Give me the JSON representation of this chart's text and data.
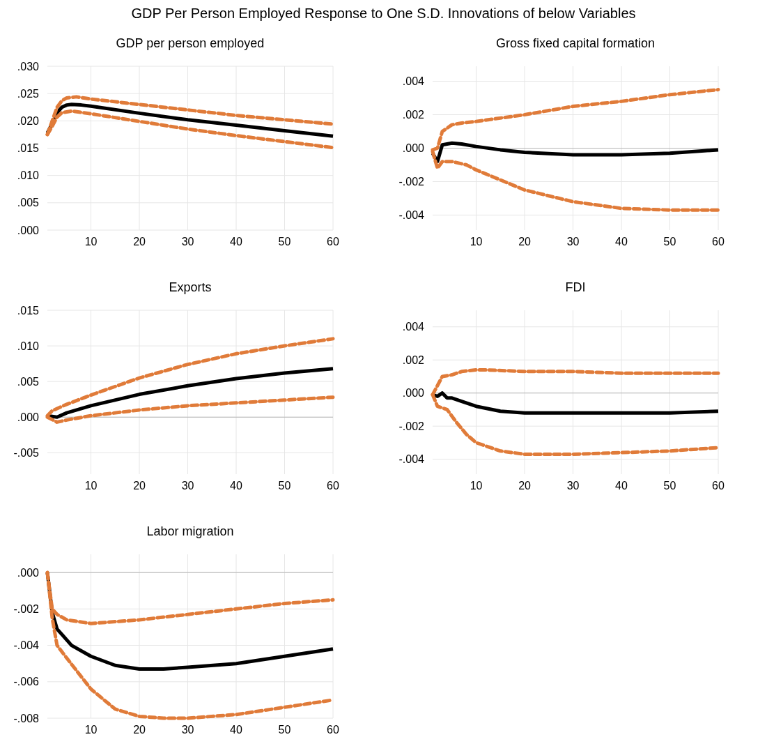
{
  "chart_data": [
    {
      "type": "line",
      "title": "GDP per person employed",
      "annotations": [
        "GDP Per Person Employed Response to One S.D. Innovations of below Variables"
      ],
      "xlim": [
        1,
        60
      ],
      "xticks": [
        10,
        20,
        30,
        40,
        50,
        60
      ],
      "ylim": [
        0,
        0.03
      ],
      "yticks": [
        {
          "value": 0,
          "label": ".000"
        },
        {
          "value": 0.005,
          "label": ".005"
        },
        {
          "value": 0.01,
          "label": ".010"
        },
        {
          "value": 0.015,
          "label": ".015"
        },
        {
          "value": 0.02,
          "label": ".020"
        },
        {
          "value": 0.025,
          "label": ".025"
        },
        {
          "value": 0.03,
          "label": ".030"
        }
      ],
      "grid": true,
      "series": [
        {
          "color": "#000000",
          "line_style": "solid",
          "x": [
            1,
            2,
            3,
            4,
            5,
            6,
            8,
            10,
            20,
            30,
            40,
            50,
            60
          ],
          "values": [
            0.0178,
            0.0195,
            0.0215,
            0.0225,
            0.0229,
            0.023,
            0.0229,
            0.0227,
            0.0214,
            0.0202,
            0.0192,
            0.0182,
            0.0172
          ]
        },
        {
          "color": "#e07b39",
          "line_style": "dashed",
          "x": [
            1,
            2,
            3,
            4,
            5,
            7,
            10,
            20,
            30,
            40,
            50,
            60
          ],
          "values": [
            0.0175,
            0.02,
            0.0225,
            0.0237,
            0.0242,
            0.0244,
            0.024,
            0.023,
            0.022,
            0.021,
            0.0202,
            0.0194
          ]
        },
        {
          "color": "#e07b39",
          "line_style": "dashed",
          "x": [
            1,
            2,
            3,
            4,
            6,
            10,
            20,
            30,
            40,
            50,
            60
          ],
          "values": [
            0.0175,
            0.019,
            0.0207,
            0.0215,
            0.0218,
            0.0213,
            0.0199,
            0.0185,
            0.0173,
            0.0162,
            0.0151
          ]
        }
      ]
    },
    {
      "type": "line",
      "title": "Gross fixed capital formation",
      "xlim": [
        1,
        60
      ],
      "xticks": [
        10,
        20,
        30,
        40,
        50,
        60
      ],
      "ylim": [
        -0.0049,
        0.0049
      ],
      "yticks": [
        {
          "value": -0.004,
          "label": "-.004"
        },
        {
          "value": -0.002,
          "label": "-.002"
        },
        {
          "value": 0,
          "label": ".000"
        },
        {
          "value": 0.002,
          "label": ".002"
        },
        {
          "value": 0.004,
          "label": ".004"
        }
      ],
      "grid": true,
      "ref_lines": [
        {
          "axis": "y",
          "value": 0,
          "color": "#b4b4b4"
        }
      ],
      "series": [
        {
          "color": "#000000",
          "line_style": "solid",
          "x": [
            1,
            2,
            3,
            5,
            7,
            10,
            15,
            20,
            30,
            40,
            50,
            60
          ],
          "values": [
            -0.0003,
            -0.0008,
            0.0002,
            0.0003,
            0.00025,
            0.0001,
            -0.0001,
            -0.00025,
            -0.0004,
            -0.0004,
            -0.0003,
            -0.0001
          ]
        },
        {
          "color": "#e07b39",
          "line_style": "dashed",
          "x": [
            1,
            2,
            3,
            5,
            7,
            10,
            20,
            30,
            40,
            50,
            60
          ],
          "values": [
            -0.0001,
            0,
            0.001,
            0.0014,
            0.0015,
            0.0016,
            0.002,
            0.0025,
            0.0028,
            0.0032,
            0.0035
          ]
        },
        {
          "color": "#e07b39",
          "line_style": "dashed",
          "x": [
            1,
            2,
            3,
            5,
            8,
            10,
            15,
            20,
            30,
            40,
            50,
            60
          ],
          "values": [
            -0.0002,
            -0.0012,
            -0.0008,
            -0.0008,
            -0.001,
            -0.0013,
            -0.0019,
            -0.0025,
            -0.0032,
            -0.0036,
            -0.0037,
            -0.0037
          ]
        }
      ]
    },
    {
      "type": "line",
      "title": "Exports",
      "xlim": [
        1,
        60
      ],
      "xticks": [
        10,
        20,
        30,
        40,
        50,
        60
      ],
      "ylim": [
        -0.008,
        0.015
      ],
      "yticks": [
        {
          "value": -0.005,
          "label": "-.005"
        },
        {
          "value": 0,
          "label": ".000"
        },
        {
          "value": 0.005,
          "label": ".005"
        },
        {
          "value": 0.01,
          "label": ".010"
        },
        {
          "value": 0.015,
          "label": ".015"
        }
      ],
      "grid": true,
      "ref_lines": [
        {
          "axis": "y",
          "value": 0,
          "color": "#b4b4b4"
        }
      ],
      "series": [
        {
          "color": "#000000",
          "line_style": "solid",
          "x": [
            1,
            3,
            5,
            10,
            20,
            30,
            40,
            50,
            60
          ],
          "values": [
            0.0002,
            0,
            0.0006,
            0.0016,
            0.0032,
            0.0044,
            0.0054,
            0.0062,
            0.0068
          ]
        },
        {
          "color": "#e07b39",
          "line_style": "dashed",
          "x": [
            1,
            2,
            5,
            10,
            20,
            30,
            40,
            50,
            60
          ],
          "values": [
            0.0002,
            0.0009,
            0.0018,
            0.0031,
            0.0055,
            0.0074,
            0.0089,
            0.01,
            0.011
          ]
        },
        {
          "color": "#e07b39",
          "line_style": "dashed",
          "x": [
            1,
            3,
            5,
            10,
            20,
            30,
            40,
            50,
            60
          ],
          "values": [
            0,
            -0.0007,
            -0.0004,
            0.0002,
            0.001,
            0.0016,
            0.002,
            0.0024,
            0.0028
          ]
        }
      ]
    },
    {
      "type": "line",
      "title": "FDI",
      "xlim": [
        1,
        60
      ],
      "xticks": [
        10,
        20,
        30,
        40,
        50,
        60
      ],
      "ylim": [
        -0.0049,
        0.005
      ],
      "yticks": [
        {
          "value": -0.004,
          "label": "-.004"
        },
        {
          "value": -0.002,
          "label": "-.002"
        },
        {
          "value": 0,
          "label": ".000"
        },
        {
          "value": 0.002,
          "label": ".002"
        },
        {
          "value": 0.004,
          "label": ".004"
        }
      ],
      "grid": true,
      "ref_lines": [
        {
          "axis": "y",
          "value": 0,
          "color": "#b4b4b4"
        }
      ],
      "series": [
        {
          "color": "#000000",
          "line_style": "solid",
          "x": [
            1,
            2,
            3,
            4,
            5,
            7,
            10,
            15,
            20,
            30,
            40,
            50,
            60
          ],
          "values": [
            -0.0001,
            -0.0002,
            0,
            -0.0003,
            -0.0003,
            -0.0005,
            -0.0008,
            -0.0011,
            -0.0012,
            -0.0012,
            -0.0012,
            -0.0012,
            -0.0011
          ]
        },
        {
          "color": "#e07b39",
          "line_style": "dashed",
          "x": [
            1,
            3,
            5,
            7,
            10,
            12,
            20,
            30,
            40,
            50,
            60
          ],
          "values": [
            -0.0001,
            0.001,
            0.0011,
            0.0013,
            0.0014,
            0.0014,
            0.0013,
            0.0013,
            0.0012,
            0.0012,
            0.0012
          ]
        },
        {
          "color": "#e07b39",
          "line_style": "dashed",
          "x": [
            1,
            2,
            4,
            6,
            8,
            10,
            15,
            20,
            30,
            40,
            50,
            60
          ],
          "values": [
            -0.0001,
            -0.0008,
            -0.001,
            -0.0018,
            -0.0025,
            -0.003,
            -0.0035,
            -0.0037,
            -0.0037,
            -0.0036,
            -0.0035,
            -0.0033
          ]
        }
      ]
    },
    {
      "type": "line",
      "title": "Labor migration",
      "xlim": [
        1,
        60
      ],
      "xticks": [
        10,
        20,
        30,
        40,
        50,
        60
      ],
      "ylim": [
        -0.008,
        0.001
      ],
      "yticks": [
        {
          "value": -0.008,
          "label": "-.008"
        },
        {
          "value": -0.006,
          "label": "-.006"
        },
        {
          "value": -0.004,
          "label": "-.004"
        },
        {
          "value": -0.002,
          "label": "-.002"
        },
        {
          "value": 0,
          "label": ".000"
        }
      ],
      "grid": true,
      "ref_lines": [
        {
          "axis": "y",
          "value": 0,
          "color": "#b4b4b4"
        }
      ],
      "series": [
        {
          "color": "#000000",
          "line_style": "solid",
          "x": [
            1,
            2,
            3,
            4,
            6,
            10,
            15,
            20,
            25,
            30,
            40,
            50,
            60
          ],
          "values": [
            0,
            -0.0022,
            -0.0031,
            -0.0034,
            -0.004,
            -0.0046,
            -0.0051,
            -0.0053,
            -0.0053,
            -0.0052,
            -0.005,
            -0.0046,
            -0.0042
          ]
        },
        {
          "color": "#e07b39",
          "line_style": "dashed",
          "x": [
            1,
            2,
            3,
            5,
            10,
            20,
            30,
            40,
            50,
            60
          ],
          "values": [
            0,
            -0.002,
            -0.0023,
            -0.0026,
            -0.0028,
            -0.0026,
            -0.0023,
            -0.002,
            -0.0017,
            -0.0015
          ]
        },
        {
          "color": "#e07b39",
          "line_style": "dashed",
          "x": [
            1,
            2,
            3,
            5,
            10,
            15,
            20,
            25,
            30,
            40,
            50,
            60
          ],
          "values": [
            0,
            -0.0025,
            -0.004,
            -0.0047,
            -0.0064,
            -0.0075,
            -0.0079,
            -0.008,
            -0.008,
            -0.0078,
            -0.0074,
            -0.007
          ]
        }
      ]
    }
  ]
}
